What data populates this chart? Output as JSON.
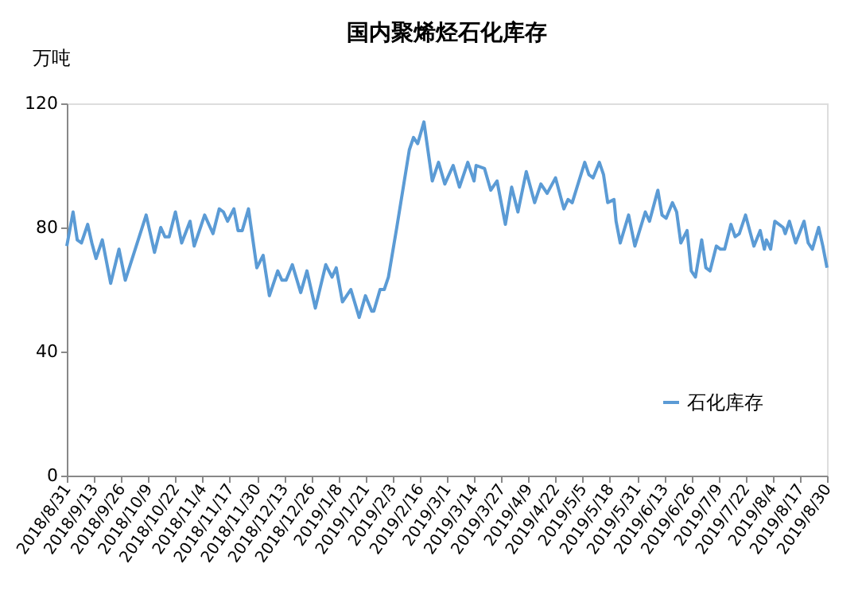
{
  "chart_data": {
    "type": "line",
    "title": "国内聚烯烃石化库存",
    "ylabel": "万吨",
    "x": [
      "2018-08-31",
      "2018-09-03",
      "2018-09-05",
      "2018-09-07",
      "2018-09-10",
      "2018-09-12",
      "2018-09-14",
      "2018-09-17",
      "2018-09-21",
      "2018-09-25",
      "2018-09-28",
      "2018-10-08",
      "2018-10-12",
      "2018-10-15",
      "2018-10-17",
      "2018-10-19",
      "2018-10-22",
      "2018-10-25",
      "2018-10-29",
      "2018-10-31",
      "2018-11-05",
      "2018-11-09",
      "2018-11-12",
      "2018-11-14",
      "2018-11-16",
      "2018-11-19",
      "2018-11-21",
      "2018-11-23",
      "2018-11-26",
      "2018-11-30",
      "2018-12-03",
      "2018-12-06",
      "2018-12-10",
      "2018-12-12",
      "2018-12-14",
      "2018-12-17",
      "2018-12-21",
      "2018-12-24",
      "2018-12-28",
      "2019-01-02",
      "2019-01-05",
      "2019-01-07",
      "2019-01-10",
      "2019-01-14",
      "2019-01-18",
      "2019-01-21",
      "2019-01-24",
      "2019-01-25",
      "2019-01-28",
      "2019-01-30",
      "2019-02-01",
      "2019-02-05",
      "2019-02-11",
      "2019-02-13",
      "2019-02-15",
      "2019-02-18",
      "2019-02-22",
      "2019-02-25",
      "2019-02-28",
      "2019-03-04",
      "2019-03-07",
      "2019-03-11",
      "2019-03-14",
      "2019-03-15",
      "2019-03-19",
      "2019-03-22",
      "2019-03-25",
      "2019-03-29",
      "2019-04-01",
      "2019-04-04",
      "2019-04-08",
      "2019-04-12",
      "2019-04-15",
      "2019-04-18",
      "2019-04-22",
      "2019-04-26",
      "2019-04-28",
      "2019-04-30",
      "2019-05-06",
      "2019-05-08",
      "2019-05-10",
      "2019-05-13",
      "2019-05-15",
      "2019-05-17",
      "2019-05-20",
      "2019-05-21",
      "2019-05-23",
      "2019-05-27",
      "2019-05-30",
      "2019-06-04",
      "2019-06-06",
      "2019-06-10",
      "2019-06-12",
      "2019-06-14",
      "2019-06-17",
      "2019-06-19",
      "2019-06-21",
      "2019-06-24",
      "2019-06-26",
      "2019-06-28",
      "2019-07-01",
      "2019-07-03",
      "2019-07-05",
      "2019-07-08",
      "2019-07-10",
      "2019-07-12",
      "2019-07-15",
      "2019-07-17",
      "2019-07-19",
      "2019-07-22",
      "2019-07-26",
      "2019-07-29",
      "2019-07-31",
      "2019-08-01",
      "2019-08-03",
      "2019-08-05",
      "2019-08-09",
      "2019-08-10",
      "2019-08-12",
      "2019-08-15",
      "2019-08-19",
      "2019-08-21",
      "2019-08-23",
      "2019-08-26",
      "2019-08-28",
      "2019-08-30"
    ],
    "series": [
      {
        "name": "石化库存",
        "color": "#5b9bd5",
        "values": [
          74,
          85,
          76,
          75,
          81,
          75,
          70,
          76,
          62,
          73,
          63,
          84,
          72,
          80,
          77,
          77,
          85,
          75,
          82,
          74,
          84,
          78,
          86,
          85,
          82,
          86,
          79,
          79,
          86,
          67,
          71,
          58,
          66,
          63,
          63,
          68,
          59,
          66,
          54,
          68,
          64,
          67,
          56,
          60,
          51,
          58,
          53,
          53,
          60,
          60,
          64,
          80,
          105,
          109,
          107,
          114,
          95,
          101,
          94,
          100,
          93,
          101,
          95,
          100,
          99,
          92,
          95,
          81,
          93,
          85,
          98,
          88,
          94,
          91,
          96,
          86,
          89,
          88,
          101,
          97,
          96,
          101,
          97,
          88,
          89,
          82,
          75,
          84,
          74,
          85,
          82,
          92,
          84,
          83,
          88,
          85,
          75,
          79,
          66,
          64,
          76,
          67,
          66,
          74,
          73,
          73,
          81,
          77,
          78,
          84,
          74,
          79,
          73,
          76,
          73,
          82,
          80,
          78,
          82,
          75,
          82,
          75,
          73,
          80,
          74,
          67
        ]
      }
    ],
    "xlim": [
      "2018-08-31",
      "2019-08-30"
    ],
    "xticks": [
      {
        "value": "2018-08-31",
        "label": "2018/8/31"
      },
      {
        "value": "2018-09-13",
        "label": "2018/9/13"
      },
      {
        "value": "2018-09-26",
        "label": "2018/9/26"
      },
      {
        "value": "2018-10-09",
        "label": "2018/10/9"
      },
      {
        "value": "2018-10-22",
        "label": "2018/10/22"
      },
      {
        "value": "2018-11-04",
        "label": "2018/11/4"
      },
      {
        "value": "2018-11-17",
        "label": "2018/11/17"
      },
      {
        "value": "2018-11-30",
        "label": "2018/11/30"
      },
      {
        "value": "2018-12-13",
        "label": "2018/12/13"
      },
      {
        "value": "2018-12-26",
        "label": "2018/12/26"
      },
      {
        "value": "2019-01-08",
        "label": "2019/1/8"
      },
      {
        "value": "2019-01-21",
        "label": "2019/1/21"
      },
      {
        "value": "2019-02-03",
        "label": "2019/2/3"
      },
      {
        "value": "2019-02-16",
        "label": "2019/2/16"
      },
      {
        "value": "2019-03-01",
        "label": "2019/3/1"
      },
      {
        "value": "2019-03-14",
        "label": "2019/3/14"
      },
      {
        "value": "2019-03-27",
        "label": "2019/3/27"
      },
      {
        "value": "2019-04-09",
        "label": "2019/4/9"
      },
      {
        "value": "2019-04-22",
        "label": "2019/4/22"
      },
      {
        "value": "2019-05-05",
        "label": "2019/5/5"
      },
      {
        "value": "2019-05-18",
        "label": "2019/5/18"
      },
      {
        "value": "2019-05-31",
        "label": "2019/5/31"
      },
      {
        "value": "2019-06-13",
        "label": "2019/6/13"
      },
      {
        "value": "2019-06-26",
        "label": "2019/6/26"
      },
      {
        "value": "2019-07-09",
        "label": "2019/7/9"
      },
      {
        "value": "2019-07-22",
        "label": "2019/7/22"
      },
      {
        "value": "2019-08-04",
        "label": "2019/8/4"
      },
      {
        "value": "2019-08-17",
        "label": "2019/8/17"
      },
      {
        "value": "2019-08-30",
        "label": "2019/8/30"
      }
    ],
    "ylim": [
      0,
      120
    ],
    "yticks": [
      0,
      40,
      80,
      120
    ],
    "grid": false,
    "legend": "bottom right",
    "marker": "none",
    "line_style": "solid"
  }
}
